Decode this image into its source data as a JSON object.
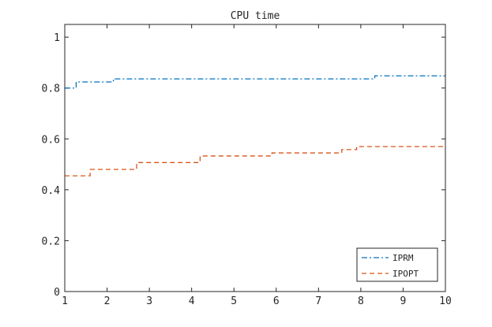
{
  "chart_data": {
    "type": "line",
    "title": "CPU time",
    "xlabel": "",
    "ylabel": "",
    "xlim": [
      1,
      10
    ],
    "ylim": [
      0,
      1.05
    ],
    "xticks": [
      "1",
      "2",
      "3",
      "4",
      "5",
      "6",
      "7",
      "8",
      "9",
      "10"
    ],
    "yticks": [
      "0",
      "0.2",
      "0.4",
      "0.6",
      "0.8",
      "1"
    ],
    "grid": false,
    "legend_position": "bottom-right",
    "step": true,
    "series": [
      {
        "name": "IPRM",
        "color": "#0072BD",
        "dash": "dash-dot",
        "x": [
          1,
          1.27,
          2.15,
          8.33,
          10
        ],
        "y": [
          0.8,
          0.824,
          0.836,
          0.848,
          0.848
        ]
      },
      {
        "name": "IPOPT",
        "color": "#D95319",
        "dash": "dashed",
        "x": [
          1,
          1.6,
          2.7,
          4.2,
          5.9,
          7.55,
          7.9,
          10
        ],
        "y": [
          0.455,
          0.48,
          0.507,
          0.533,
          0.545,
          0.558,
          0.57,
          0.57
        ]
      }
    ]
  }
}
